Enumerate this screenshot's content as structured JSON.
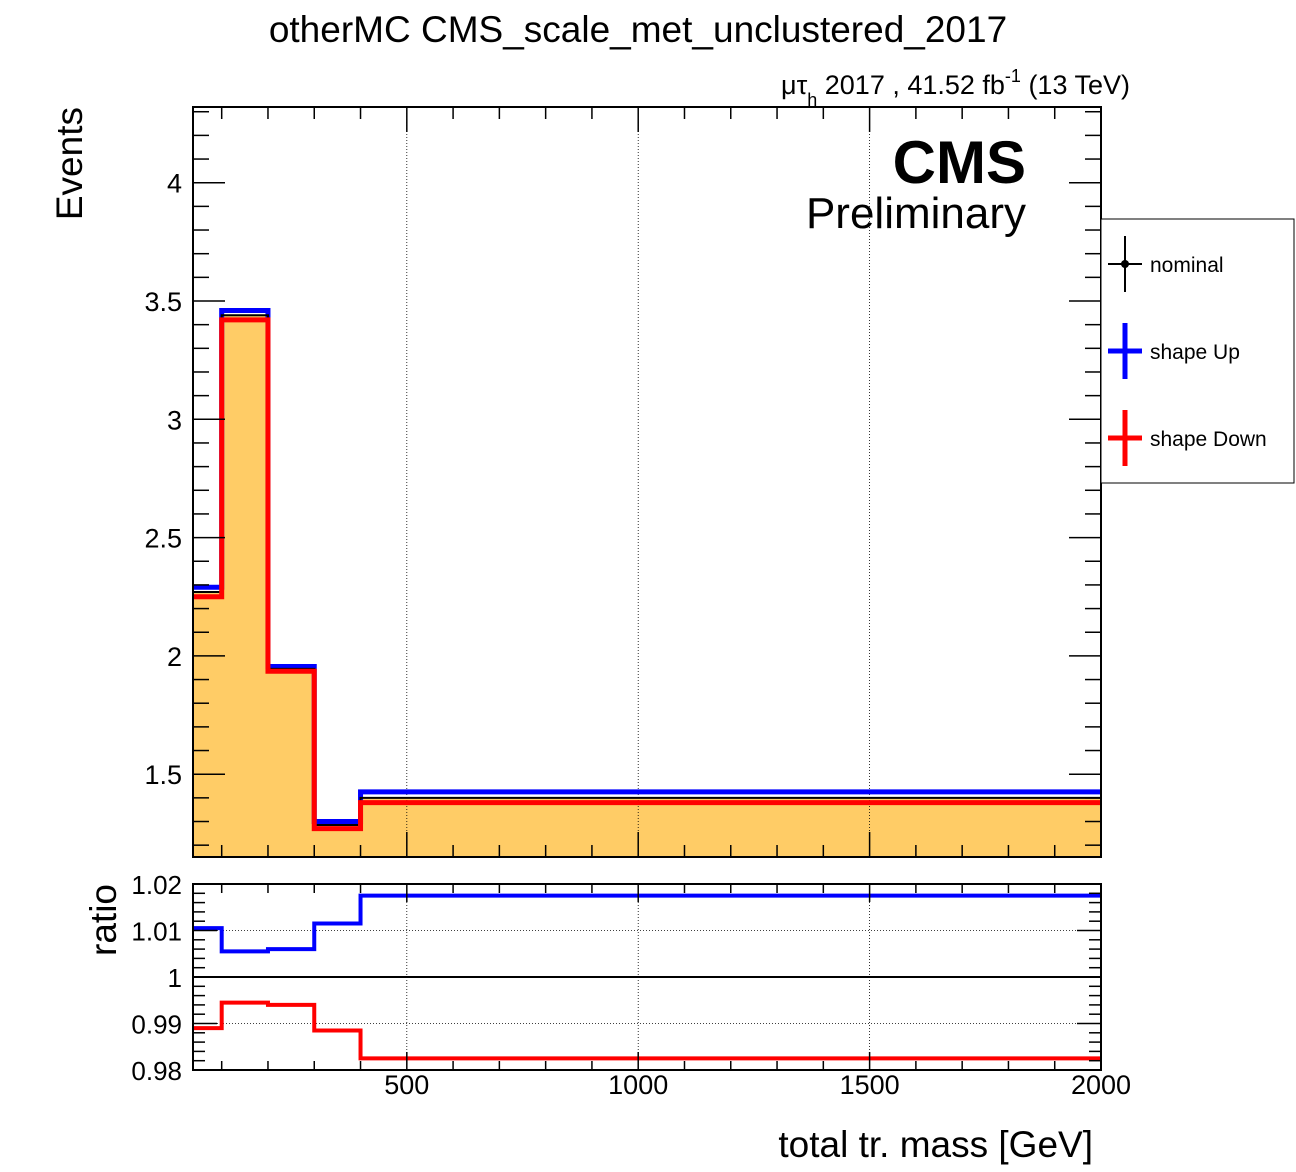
{
  "chart_data": [
    {
      "type": "step-histogram",
      "title": "otherMC CMS_scale_met_unclustered_2017",
      "lumi_label": {
        "channel_mu": "μ",
        "channel_tau": "τ",
        "channel_sub": "h",
        "text": " 2017 , 41.52 fb",
        "sup": "-1",
        "energy": " (13 TeV)"
      },
      "cms_label": "CMS",
      "cms_sublabel": "Preliminary",
      "ylabel": "Events",
      "ylim": [
        1.15,
        4.32
      ],
      "yticks": [
        1.5,
        2,
        2.5,
        3,
        3.5,
        4
      ],
      "ytick_labels": [
        "1.5",
        "2",
        "2.5",
        "3",
        "3.5",
        "4"
      ],
      "xlim": [
        38,
        2000
      ],
      "bin_edges": [
        38,
        100,
        200,
        300,
        400,
        2000
      ],
      "series": [
        {
          "name": "nominal",
          "values": [
            2.27,
            3.44,
            1.945,
            1.285,
            1.4
          ],
          "color": "#000000",
          "fill": "#ffcc66"
        },
        {
          "name": "shape Up",
          "values": [
            2.29,
            3.46,
            1.955,
            1.3,
            1.425
          ],
          "color": "#0000ff"
        },
        {
          "name": "shape Down",
          "values": [
            2.25,
            3.42,
            1.935,
            1.27,
            1.38
          ],
          "color": "#ff0000"
        }
      ],
      "legend": [
        {
          "label": "nominal",
          "color": "#000000"
        },
        {
          "label": "shape Up",
          "color": "#0000ff"
        },
        {
          "label": "shape Down",
          "color": "#ff0000"
        }
      ],
      "legend_placement": "right-outside",
      "grid_x": true,
      "grid_y": false
    },
    {
      "type": "step-ratio",
      "ylabel": "ratio",
      "xlabel": "total tr. mass [GeV]",
      "ylim": [
        0.98,
        1.02
      ],
      "yticks": [
        0.98,
        0.99,
        1,
        1.01,
        1.02
      ],
      "ytick_labels": [
        "0.98",
        "0.99",
        "1",
        "1.01",
        "1.02"
      ],
      "xticks": [
        500,
        1000,
        1500,
        2000
      ],
      "xtick_labels": [
        "500",
        "1000",
        "1500",
        "2000"
      ],
      "bin_edges": [
        38,
        100,
        200,
        300,
        400,
        2000
      ],
      "series": [
        {
          "name": "shape Up",
          "values": [
            1.0105,
            1.0055,
            1.006,
            1.0115,
            1.0175
          ],
          "color": "#0000ff"
        },
        {
          "name": "shape Down",
          "values": [
            0.989,
            0.9945,
            0.994,
            0.9885,
            0.9825
          ],
          "color": "#ff0000"
        }
      ],
      "reference_line": 1
    }
  ]
}
